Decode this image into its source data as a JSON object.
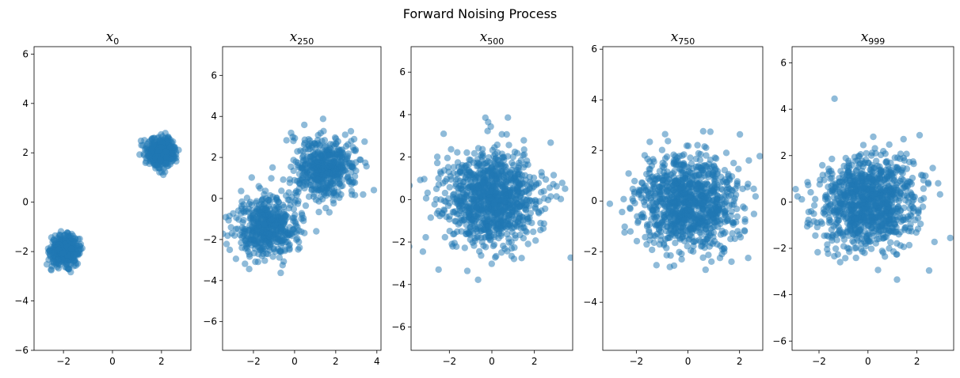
{
  "figure": {
    "suptitle": "Forward Noising Process",
    "point_color": "#1f77b4",
    "point_alpha": 0.5
  },
  "chart_data": [
    {
      "type": "scatter",
      "title": "x_0",
      "title_main": "x",
      "title_sub": "0",
      "xlabel": "",
      "ylabel": "",
      "xlim": [
        -3.2,
        3.2
      ],
      "ylim": [
        -6.0,
        6.3
      ],
      "xticks": [
        -2,
        0,
        2
      ],
      "yticks": [
        -6,
        -4,
        -2,
        0,
        2,
        4,
        6
      ],
      "clusters": [
        {
          "center": [
            -1.95,
            -1.95
          ],
          "std": 0.28,
          "count": 500
        },
        {
          "center": [
            2.0,
            2.05
          ],
          "std": 0.28,
          "count": 500
        }
      ],
      "grid": false
    },
    {
      "type": "scatter",
      "title": "x_250",
      "title_main": "x",
      "title_sub": "250",
      "xlabel": "",
      "ylabel": "",
      "xlim": [
        -3.5,
        4.2
      ],
      "ylim": [
        -7.4,
        7.4
      ],
      "xticks": [
        -2,
        0,
        2,
        4
      ],
      "yticks": [
        -6,
        -4,
        -2,
        0,
        2,
        4,
        6
      ],
      "clusters": [
        {
          "center": [
            -1.3,
            -1.35
          ],
          "std": 0.75,
          "count": 500
        },
        {
          "center": [
            1.45,
            1.45
          ],
          "std": 0.75,
          "count": 500
        }
      ],
      "grid": false
    },
    {
      "type": "scatter",
      "title": "x_500",
      "title_main": "x",
      "title_sub": "500",
      "xlabel": "",
      "ylabel": "",
      "xlim": [
        -3.8,
        3.8
      ],
      "ylim": [
        -7.1,
        7.2
      ],
      "xticks": [
        -2,
        0,
        2
      ],
      "yticks": [
        -6,
        -4,
        -2,
        0,
        2,
        4,
        6
      ],
      "clusters": [
        {
          "center": [
            0.0,
            0.0
          ],
          "std": 1.15,
          "count": 1000
        }
      ],
      "grid": false
    },
    {
      "type": "scatter",
      "title": "x_750",
      "title_main": "x",
      "title_sub": "750",
      "xlabel": "",
      "ylabel": "",
      "xlim": [
        -3.3,
        2.9
      ],
      "ylim": [
        -5.9,
        6.1
      ],
      "xticks": [
        -2,
        0,
        2
      ],
      "yticks": [
        -4,
        -2,
        0,
        2,
        4,
        6
      ],
      "clusters": [
        {
          "center": [
            0.0,
            0.0
          ],
          "std": 0.95,
          "count": 1000
        }
      ],
      "grid": false
    },
    {
      "type": "scatter",
      "title": "x_999",
      "title_main": "x",
      "title_sub": "999",
      "xlabel": "",
      "ylabel": "",
      "xlim": [
        -3.1,
        3.5
      ],
      "ylim": [
        -6.4,
        6.7
      ],
      "xticks": [
        -2,
        0,
        2
      ],
      "yticks": [
        -6,
        -4,
        -2,
        0,
        2,
        4,
        6
      ],
      "clusters": [
        {
          "center": [
            0.0,
            0.0
          ],
          "std": 1.0,
          "count": 1000
        }
      ],
      "grid": false
    }
  ]
}
